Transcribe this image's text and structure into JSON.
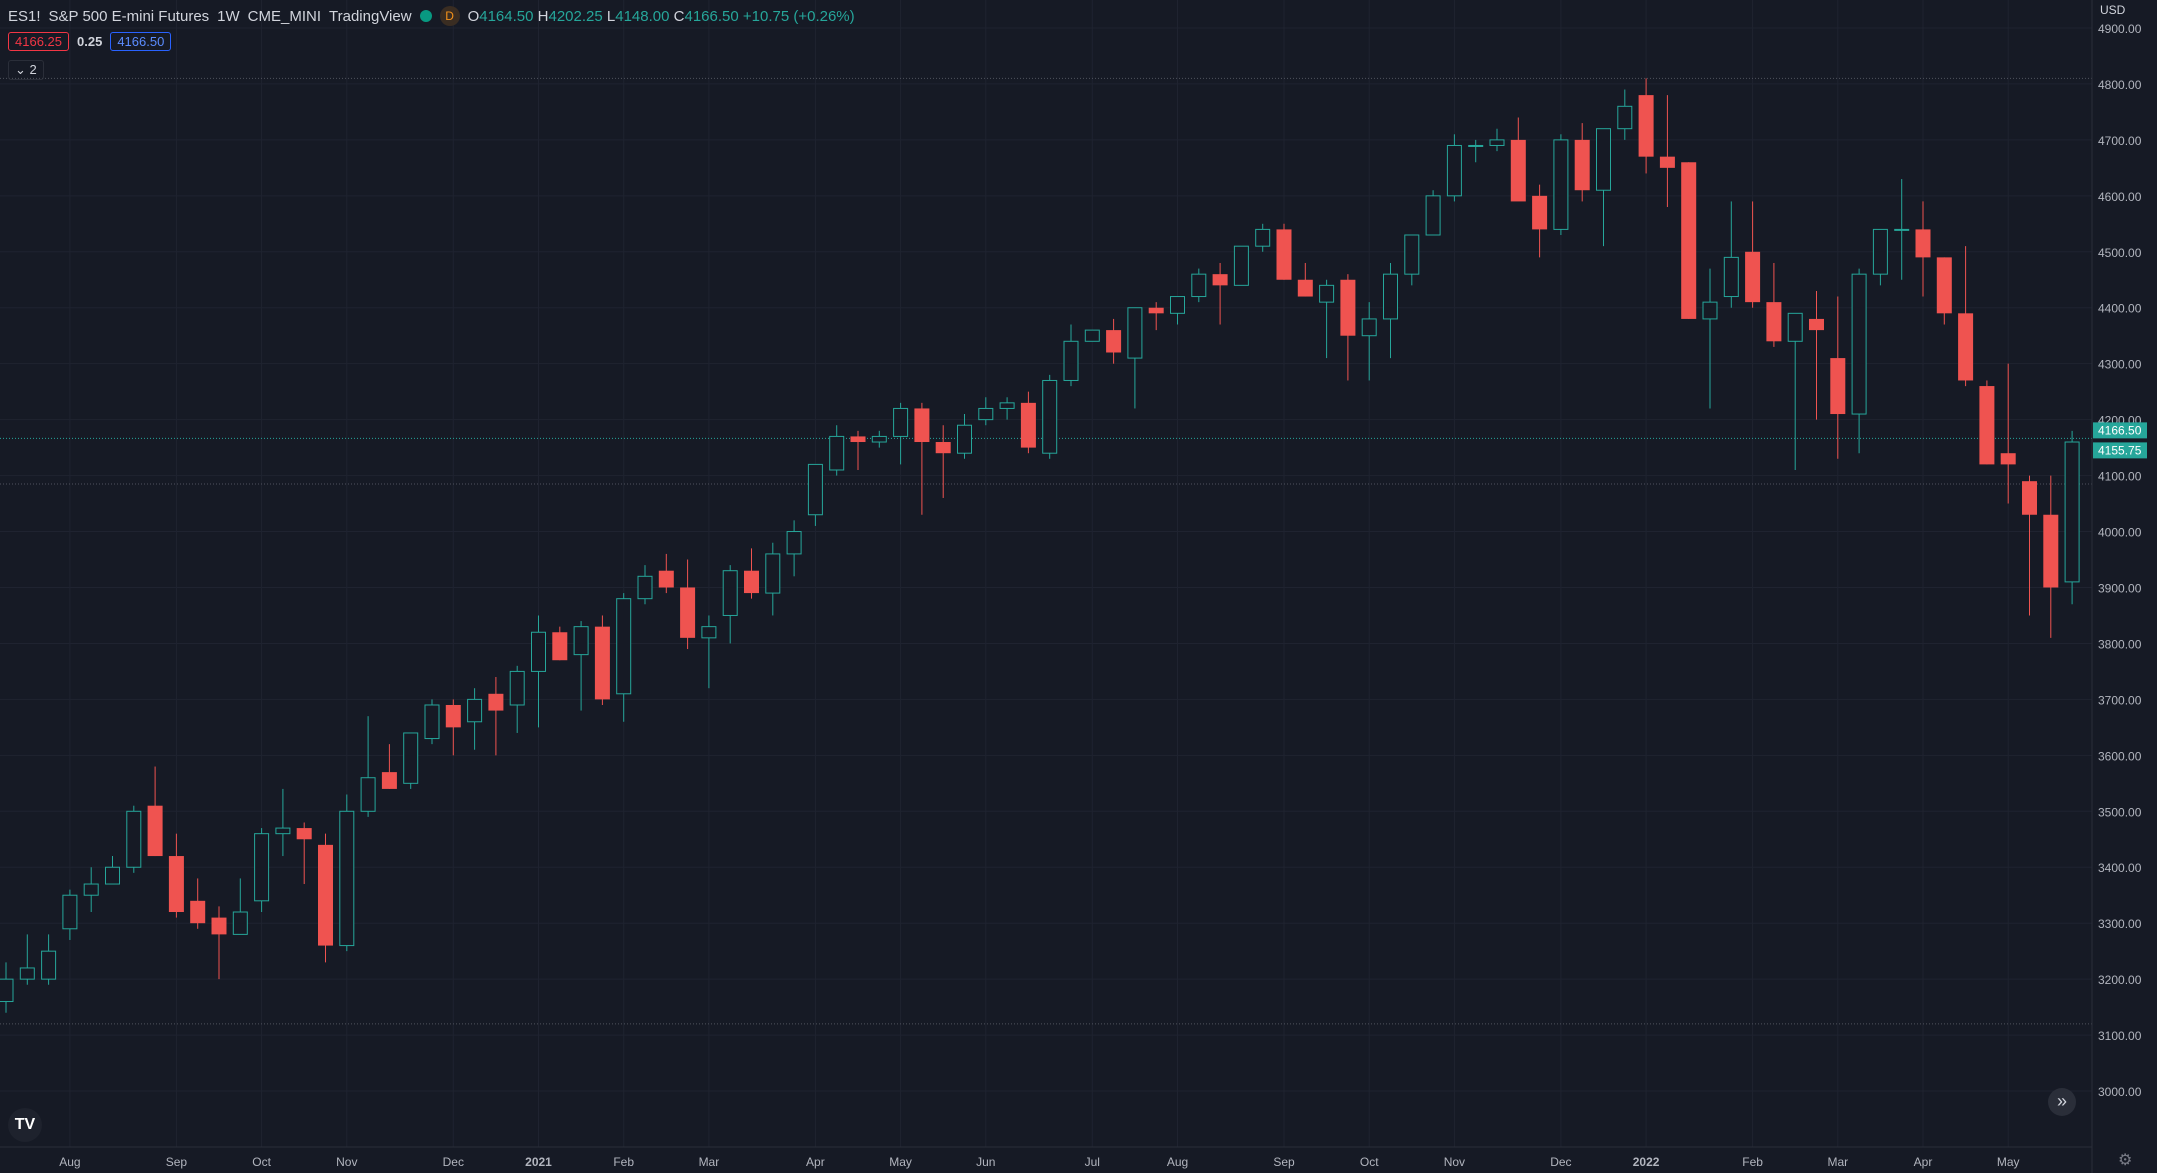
{
  "header": {
    "symbol": "ES1!",
    "name": "S&P 500 E-mini Futures",
    "interval": "1W",
    "exchange": "CME_MINI",
    "source": "TradingView",
    "badge": "D",
    "o_label": "O",
    "o_value": "4164.50",
    "h_label": "H",
    "h_value": "4202.25",
    "l_label": "L",
    "l_value": "4148.00",
    "c_label": "C",
    "c_value": "4166.50",
    "change": "+10.75 (+0.26%)",
    "bid": "4166.25",
    "spread": "0.25",
    "ask": "4166.50",
    "collapse_label": "2"
  },
  "currency": "USD",
  "icons": {
    "logo": "tradingview-logo-icon",
    "scroll": "scroll-to-realtime-icon",
    "settings": "gear-icon"
  },
  "colors": {
    "background": "#161a25",
    "up": "#26a69a",
    "down": "#ef5350",
    "grid": "#1f2330",
    "text": "#d1d4dc",
    "price_label": "#26a69a"
  },
  "chart_data": {
    "type": "candlestick",
    "ylim": [
      2900,
      4950
    ],
    "y_ticks": [
      "3000.00",
      "3100.00",
      "3200.00",
      "3300.00",
      "3400.00",
      "3500.00",
      "3600.00",
      "3700.00",
      "3800.00",
      "3900.00",
      "4000.00",
      "4100.00",
      "4200.00",
      "4300.00",
      "4400.00",
      "4500.00",
      "4600.00",
      "4700.00",
      "4800.00",
      "4900.00"
    ],
    "x_ticks": [
      {
        "label": "Aug",
        "i": 3
      },
      {
        "label": "Sep",
        "i": 8
      },
      {
        "label": "Oct",
        "i": 12
      },
      {
        "label": "Nov",
        "i": 16
      },
      {
        "label": "Dec",
        "i": 21
      },
      {
        "label": "2021",
        "i": 25
      },
      {
        "label": "Feb",
        "i": 29
      },
      {
        "label": "Mar",
        "i": 33
      },
      {
        "label": "Apr",
        "i": 38
      },
      {
        "label": "May",
        "i": 42
      },
      {
        "label": "Jun",
        "i": 46
      },
      {
        "label": "Jul",
        "i": 51
      },
      {
        "label": "Aug",
        "i": 55
      },
      {
        "label": "Sep",
        "i": 60
      },
      {
        "label": "Oct",
        "i": 64
      },
      {
        "label": "Nov",
        "i": 68
      },
      {
        "label": "Dec",
        "i": 73
      },
      {
        "label": "2022",
        "i": 77
      },
      {
        "label": "Feb",
        "i": 82
      },
      {
        "label": "Mar",
        "i": 86
      },
      {
        "label": "Apr",
        "i": 90
      },
      {
        "label": "May",
        "i": 94
      }
    ],
    "hlines": [
      4810,
      4085,
      3120
    ],
    "price_labels": [
      {
        "value": 4166.5,
        "text": "4166.50"
      },
      {
        "value": 4155.75,
        "text": "4155.75"
      }
    ],
    "candles": [
      [
        3160,
        3230,
        3140,
        3200
      ],
      [
        3200,
        3280,
        3190,
        3220
      ],
      [
        3200,
        3280,
        3190,
        3250
      ],
      [
        3290,
        3360,
        3270,
        3350
      ],
      [
        3350,
        3400,
        3320,
        3370
      ],
      [
        3370,
        3420,
        3370,
        3400
      ],
      [
        3400,
        3510,
        3390,
        3500
      ],
      [
        3510,
        3580,
        3420,
        3420
      ],
      [
        3420,
        3460,
        3310,
        3320
      ],
      [
        3340,
        3380,
        3290,
        3300
      ],
      [
        3310,
        3330,
        3200,
        3280
      ],
      [
        3280,
        3380,
        3280,
        3320
      ],
      [
        3340,
        3470,
        3320,
        3460
      ],
      [
        3460,
        3540,
        3420,
        3470
      ],
      [
        3470,
        3480,
        3370,
        3450
      ],
      [
        3440,
        3460,
        3230,
        3260
      ],
      [
        3260,
        3530,
        3250,
        3500
      ],
      [
        3500,
        3670,
        3490,
        3560
      ],
      [
        3570,
        3620,
        3540,
        3540
      ],
      [
        3550,
        3640,
        3540,
        3640
      ],
      [
        3630,
        3700,
        3620,
        3690
      ],
      [
        3690,
        3700,
        3600,
        3650
      ],
      [
        3660,
        3720,
        3610,
        3700
      ],
      [
        3710,
        3740,
        3600,
        3680
      ],
      [
        3690,
        3760,
        3640,
        3750
      ],
      [
        3750,
        3850,
        3650,
        3820
      ],
      [
        3820,
        3830,
        3770,
        3770
      ],
      [
        3780,
        3840,
        3680,
        3830
      ],
      [
        3830,
        3850,
        3690,
        3700
      ],
      [
        3710,
        3890,
        3660,
        3880
      ],
      [
        3880,
        3940,
        3870,
        3920
      ],
      [
        3930,
        3960,
        3890,
        3900
      ],
      [
        3900,
        3950,
        3790,
        3810
      ],
      [
        3810,
        3850,
        3720,
        3830
      ],
      [
        3850,
        3940,
        3800,
        3930
      ],
      [
        3930,
        3970,
        3880,
        3890
      ],
      [
        3890,
        3980,
        3850,
        3960
      ],
      [
        3960,
        4020,
        3920,
        4000
      ],
      [
        4030,
        4120,
        4010,
        4120
      ],
      [
        4110,
        4190,
        4100,
        4170
      ],
      [
        4170,
        4180,
        4110,
        4160
      ],
      [
        4160,
        4180,
        4150,
        4170
      ],
      [
        4170,
        4230,
        4120,
        4220
      ],
      [
        4220,
        4230,
        4030,
        4160
      ],
      [
        4160,
        4190,
        4060,
        4140
      ],
      [
        4140,
        4210,
        4130,
        4190
      ],
      [
        4200,
        4240,
        4190,
        4220
      ],
      [
        4220,
        4240,
        4200,
        4230
      ],
      [
        4230,
        4250,
        4140,
        4150
      ],
      [
        4140,
        4280,
        4130,
        4270
      ],
      [
        4270,
        4370,
        4260,
        4340
      ],
      [
        4340,
        4360,
        4340,
        4360
      ],
      [
        4360,
        4380,
        4300,
        4320
      ],
      [
        4310,
        4400,
        4220,
        4400
      ],
      [
        4400,
        4410,
        4360,
        4390
      ],
      [
        4390,
        4410,
        4370,
        4420
      ],
      [
        4420,
        4470,
        4410,
        4460
      ],
      [
        4460,
        4480,
        4370,
        4440
      ],
      [
        4440,
        4510,
        4440,
        4510
      ],
      [
        4510,
        4550,
        4500,
        4540
      ],
      [
        4540,
        4550,
        4450,
        4450
      ],
      [
        4450,
        4480,
        4420,
        4420
      ],
      [
        4410,
        4450,
        4310,
        4440
      ],
      [
        4450,
        4460,
        4270,
        4350
      ],
      [
        4350,
        4410,
        4270,
        4380
      ],
      [
        4380,
        4480,
        4310,
        4460
      ],
      [
        4460,
        4530,
        4440,
        4530
      ],
      [
        4530,
        4610,
        4530,
        4600
      ],
      [
        4600,
        4710,
        4590,
        4690
      ],
      [
        4690,
        4700,
        4660,
        4690
      ],
      [
        4690,
        4720,
        4680,
        4700
      ],
      [
        4700,
        4740,
        4600,
        4590
      ],
      [
        4600,
        4620,
        4490,
        4540
      ],
      [
        4540,
        4710,
        4530,
        4700
      ],
      [
        4700,
        4730,
        4590,
        4610
      ],
      [
        4610,
        4720,
        4510,
        4720
      ],
      [
        4720,
        4790,
        4700,
        4760
      ],
      [
        4780,
        4810,
        4640,
        4670
      ],
      [
        4670,
        4780,
        4580,
        4650
      ],
      [
        4660,
        4660,
        4380,
        4380
      ],
      [
        4380,
        4470,
        4220,
        4410
      ],
      [
        4420,
        4590,
        4400,
        4490
      ],
      [
        4500,
        4590,
        4400,
        4410
      ],
      [
        4410,
        4480,
        4330,
        4340
      ],
      [
        4340,
        4390,
        4110,
        4390
      ],
      [
        4380,
        4430,
        4200,
        4360
      ],
      [
        4310,
        4420,
        4130,
        4210
      ],
      [
        4210,
        4470,
        4140,
        4460
      ],
      [
        4460,
        4540,
        4440,
        4540
      ],
      [
        4540,
        4630,
        4450,
        4540
      ],
      [
        4540,
        4590,
        4420,
        4490
      ],
      [
        4490,
        4490,
        4370,
        4390
      ],
      [
        4390,
        4510,
        4260,
        4270
      ],
      [
        4260,
        4270,
        4120,
        4120
      ],
      [
        4140,
        4300,
        4050,
        4120
      ],
      [
        4090,
        4100,
        3850,
        4030
      ],
      [
        4030,
        4100,
        3810,
        3900
      ],
      [
        3910,
        4180,
        3870,
        4160
      ]
    ]
  }
}
